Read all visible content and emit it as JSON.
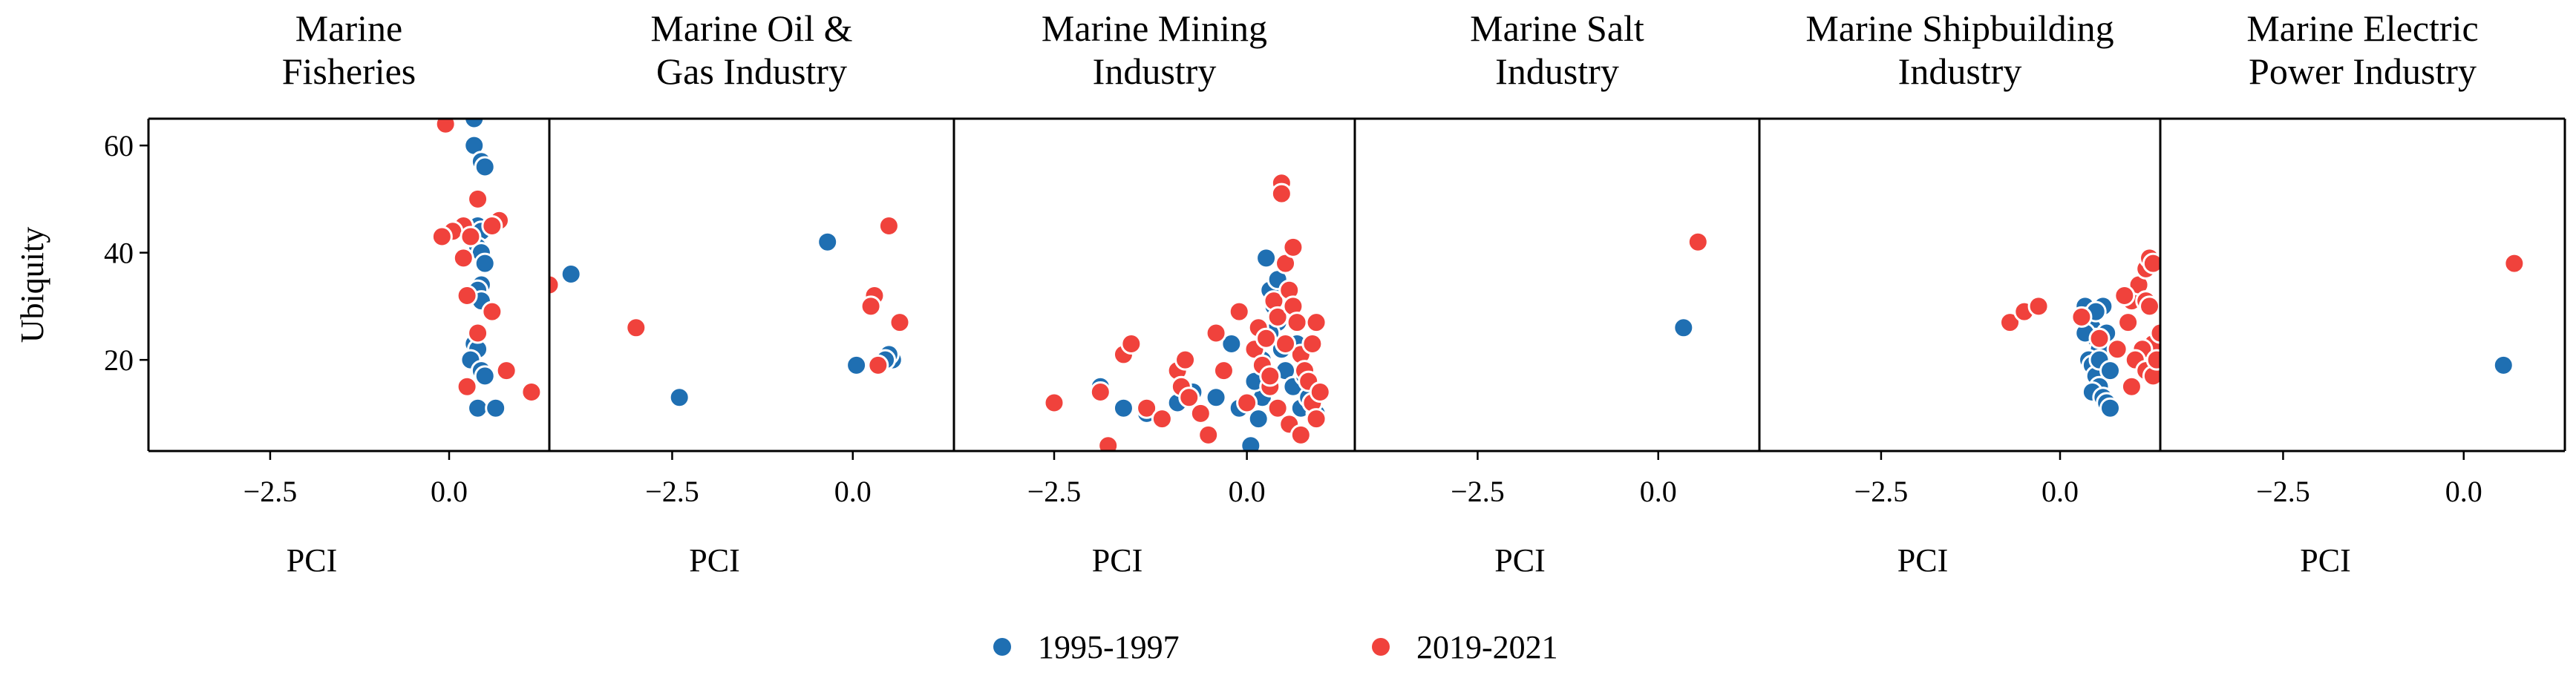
{
  "colors": {
    "series_1995": "#1f6fb2",
    "series_2019": "#f0423c"
  },
  "legend": [
    {
      "label": "1995-1997",
      "color": "#1f6fb2"
    },
    {
      "label": "2019-2021",
      "color": "#f0423c"
    }
  ],
  "chart_data": [
    {
      "type": "scatter",
      "title_lines": [
        "Marine",
        "Fisheries"
      ],
      "xlabel": "PCI",
      "ylabel": "Ubiquity",
      "xlim": [
        -4.2,
        1.4
      ],
      "ylim": [
        3,
        65
      ],
      "xticks": [
        {
          "value": -2.5,
          "label": "−2.5"
        },
        {
          "value": 0.0,
          "label": "0.0"
        }
      ],
      "yticks": [
        {
          "value": 20,
          "label": "20"
        },
        {
          "value": 40,
          "label": "40"
        },
        {
          "value": 60,
          "label": "60"
        }
      ],
      "series": [
        {
          "name": "1995-1997",
          "points": [
            [
              0.35,
              65
            ],
            [
              0.35,
              60
            ],
            [
              0.45,
              57
            ],
            [
              0.5,
              56
            ],
            [
              0.4,
              45
            ],
            [
              0.45,
              44
            ],
            [
              0.4,
              41
            ],
            [
              0.45,
              40
            ],
            [
              0.5,
              38
            ],
            [
              0.45,
              34
            ],
            [
              0.4,
              33
            ],
            [
              0.45,
              31
            ],
            [
              0.35,
              23
            ],
            [
              0.4,
              22
            ],
            [
              0.3,
              20
            ],
            [
              0.45,
              18
            ],
            [
              0.5,
              17
            ],
            [
              0.4,
              11
            ],
            [
              0.65,
              11
            ]
          ]
        },
        {
          "name": "2019-2021",
          "points": [
            [
              -0.05,
              64
            ],
            [
              0.4,
              50
            ],
            [
              0.7,
              46
            ],
            [
              0.6,
              45
            ],
            [
              0.2,
              45
            ],
            [
              0.05,
              44
            ],
            [
              -0.1,
              43
            ],
            [
              0.3,
              43
            ],
            [
              0.2,
              39
            ],
            [
              0.6,
              29
            ],
            [
              0.25,
              32
            ],
            [
              0.4,
              25
            ],
            [
              0.8,
              18
            ],
            [
              0.25,
              15
            ],
            [
              1.15,
              14
            ]
          ]
        }
      ]
    },
    {
      "type": "scatter",
      "title_lines": [
        "Marine Oil &",
        "Gas Industry"
      ],
      "xlabel": "PCI",
      "ylabel": "",
      "xlim": [
        -4.2,
        1.4
      ],
      "ylim": [
        3,
        65
      ],
      "xticks": [
        {
          "value": -2.5,
          "label": "−2.5"
        },
        {
          "value": 0.0,
          "label": "0.0"
        }
      ],
      "yticks": [],
      "series": [
        {
          "name": "1995-1997",
          "points": [
            [
              -3.9,
              36
            ],
            [
              -2.4,
              13
            ],
            [
              -0.35,
              42
            ],
            [
              0.05,
              19
            ],
            [
              0.55,
              20
            ],
            [
              0.5,
              21
            ],
            [
              0.45,
              20
            ]
          ]
        },
        {
          "name": "2019-2021",
          "points": [
            [
              -4.2,
              34
            ],
            [
              -3.0,
              26
            ],
            [
              0.5,
              45
            ],
            [
              0.3,
              32
            ],
            [
              0.25,
              30
            ],
            [
              0.65,
              27
            ],
            [
              0.35,
              19
            ]
          ]
        }
      ]
    },
    {
      "type": "scatter",
      "title_lines": [
        "Marine Mining",
        "Industry"
      ],
      "xlabel": "PCI",
      "ylabel": "",
      "xlim": [
        -3.8,
        1.4
      ],
      "ylim": [
        3,
        65
      ],
      "xticks": [
        {
          "value": -2.5,
          "label": "−2.5"
        },
        {
          "value": 0.0,
          "label": "0.0"
        }
      ],
      "yticks": [],
      "series": [
        {
          "name": "1995-1997",
          "points": [
            [
              -1.9,
              15
            ],
            [
              -1.6,
              11
            ],
            [
              -1.3,
              10
            ],
            [
              -0.9,
              12
            ],
            [
              -0.7,
              14
            ],
            [
              -0.4,
              13
            ],
            [
              -0.2,
              23
            ],
            [
              -0.1,
              11
            ],
            [
              0.05,
              4
            ],
            [
              0.15,
              9
            ],
            [
              0.2,
              13
            ],
            [
              0.25,
              39
            ],
            [
              0.3,
              33
            ],
            [
              0.35,
              30
            ],
            [
              0.4,
              27
            ],
            [
              0.45,
              22
            ],
            [
              0.5,
              18
            ],
            [
              0.6,
              15
            ],
            [
              0.7,
              11
            ],
            [
              0.8,
              13
            ],
            [
              0.9,
              10
            ],
            [
              0.3,
              25
            ],
            [
              0.2,
              20
            ],
            [
              0.1,
              16
            ],
            [
              0.55,
              8
            ],
            [
              0.4,
              35
            ],
            [
              0.65,
              23
            ],
            [
              0.75,
              17
            ]
          ]
        },
        {
          "name": "2019-2021",
          "points": [
            [
              -2.5,
              12
            ],
            [
              -1.9,
              14
            ],
            [
              -1.8,
              4
            ],
            [
              -1.6,
              21
            ],
            [
              -1.5,
              23
            ],
            [
              -1.3,
              11
            ],
            [
              -1.1,
              9
            ],
            [
              -0.9,
              18
            ],
            [
              -0.85,
              15
            ],
            [
              -0.8,
              20
            ],
            [
              -0.75,
              13
            ],
            [
              -0.6,
              10
            ],
            [
              -0.5,
              6
            ],
            [
              -0.4,
              25
            ],
            [
              -0.3,
              18
            ],
            [
              -0.1,
              29
            ],
            [
              0.0,
              12
            ],
            [
              0.1,
              22
            ],
            [
              0.15,
              26
            ],
            [
              0.2,
              19
            ],
            [
              0.25,
              24
            ],
            [
              0.3,
              15
            ],
            [
              0.35,
              31
            ],
            [
              0.4,
              28
            ],
            [
              0.45,
              53
            ],
            [
              0.45,
              51
            ],
            [
              0.5,
              38
            ],
            [
              0.55,
              33
            ],
            [
              0.6,
              30
            ],
            [
              0.6,
              41
            ],
            [
              0.65,
              27
            ],
            [
              0.7,
              21
            ],
            [
              0.75,
              18
            ],
            [
              0.8,
              16
            ],
            [
              0.85,
              12
            ],
            [
              0.9,
              9
            ],
            [
              0.95,
              14
            ],
            [
              0.5,
              23
            ],
            [
              0.55,
              8
            ],
            [
              0.4,
              11
            ],
            [
              0.7,
              6
            ],
            [
              0.3,
              17
            ],
            [
              0.9,
              27
            ],
            [
              0.85,
              23
            ]
          ]
        }
      ]
    },
    {
      "type": "scatter",
      "title_lines": [
        "Marine Salt",
        "Industry"
      ],
      "xlabel": "PCI",
      "ylabel": "",
      "xlim": [
        -4.2,
        1.4
      ],
      "ylim": [
        3,
        65
      ],
      "xticks": [
        {
          "value": -2.5,
          "label": "−2.5"
        },
        {
          "value": 0.0,
          "label": "0.0"
        }
      ],
      "yticks": [],
      "series": [
        {
          "name": "1995-1997",
          "points": [
            [
              0.35,
              26
            ]
          ]
        },
        {
          "name": "2019-2021",
          "points": [
            [
              0.55,
              42
            ]
          ]
        }
      ]
    },
    {
      "type": "scatter",
      "title_lines": [
        "Marine Shipbuilding",
        "Industry"
      ],
      "xlabel": "PCI",
      "ylabel": "",
      "xlim": [
        -4.2,
        1.4
      ],
      "ylim": [
        3,
        65
      ],
      "xticks": [
        {
          "value": -2.5,
          "label": "−2.5"
        },
        {
          "value": 0.0,
          "label": "0.0"
        }
      ],
      "yticks": [],
      "series": [
        {
          "name": "1995-1997",
          "points": [
            [
              0.35,
              30
            ],
            [
              0.4,
              28
            ],
            [
              0.45,
              26
            ],
            [
              0.5,
              24
            ],
            [
              0.55,
              22
            ],
            [
              0.4,
              20
            ],
            [
              0.45,
              19
            ],
            [
              0.5,
              17
            ],
            [
              0.55,
              15
            ],
            [
              0.45,
              14
            ],
            [
              0.6,
              13
            ],
            [
              0.65,
              12
            ],
            [
              0.7,
              11
            ],
            [
              0.6,
              30
            ],
            [
              0.65,
              25
            ],
            [
              0.55,
              20
            ],
            [
              0.7,
              18
            ],
            [
              0.5,
              29
            ],
            [
              0.35,
              25
            ]
          ]
        },
        {
          "name": "2019-2021",
          "points": [
            [
              -0.7,
              27
            ],
            [
              -0.5,
              29
            ],
            [
              -0.3,
              30
            ],
            [
              0.3,
              28
            ],
            [
              0.55,
              24
            ],
            [
              0.8,
              22
            ],
            [
              0.95,
              27
            ],
            [
              1.0,
              31
            ],
            [
              1.1,
              34
            ],
            [
              1.2,
              37
            ],
            [
              1.25,
              39
            ],
            [
              1.3,
              38
            ],
            [
              1.2,
              31
            ],
            [
              1.25,
              30
            ],
            [
              1.3,
              23
            ],
            [
              1.15,
              22
            ],
            [
              1.05,
              20
            ],
            [
              1.2,
              18
            ],
            [
              1.3,
              17
            ],
            [
              0.9,
              32
            ],
            [
              1.4,
              25
            ],
            [
              1.35,
              20
            ],
            [
              1.0,
              15
            ]
          ]
        }
      ]
    },
    {
      "type": "scatter",
      "title_lines": [
        "Marine Electric",
        "Power Industry"
      ],
      "xlabel": "PCI",
      "ylabel": "",
      "xlim": [
        -4.2,
        1.4
      ],
      "ylim": [
        3,
        65
      ],
      "xticks": [
        {
          "value": -2.5,
          "label": "−2.5"
        },
        {
          "value": 0.0,
          "label": "0.0"
        }
      ],
      "yticks": [],
      "series": [
        {
          "name": "1995-1997",
          "points": [
            [
              0.55,
              19
            ]
          ]
        },
        {
          "name": "2019-2021",
          "points": [
            [
              0.7,
              38
            ]
          ]
        }
      ]
    }
  ]
}
